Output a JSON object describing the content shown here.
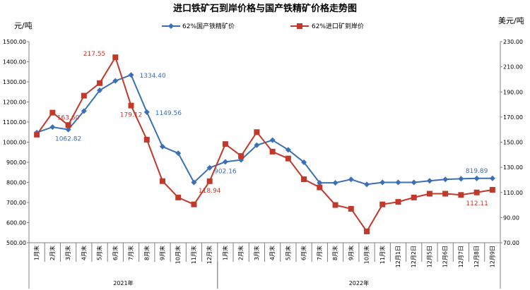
{
  "chart_data": {
    "type": "line",
    "title": "进口铁矿石到岸价格与国产铁精矿价格走势图",
    "left_unit": "元/吨",
    "right_unit": "美元/吨",
    "ylim_left": [
      500,
      1500
    ],
    "ylim_right": [
      70,
      230
    ],
    "yticks_left": [
      "500.00",
      "600.00",
      "700.00",
      "800.00",
      "900.00",
      "1000.00",
      "1100.00",
      "1200.00",
      "1300.00",
      "1400.00",
      "1500.00"
    ],
    "yticks_right": [
      "70.00",
      "90.00",
      "110.00",
      "130.00",
      "150.00",
      "170.00",
      "190.00",
      "210.00",
      "230.00"
    ],
    "categories": [
      "1月末",
      "2月末",
      "3月末",
      "4月末",
      "5月末",
      "6月末",
      "7月末",
      "8月末",
      "9月末",
      "10月末",
      "11月末",
      "12月末",
      "1月末",
      "2月末",
      "3月末",
      "4月末",
      "5月末",
      "6月末",
      "7月末",
      "8月末",
      "9月末",
      "10月末",
      "11月末",
      "12月1日",
      "12月2日",
      "12月5日",
      "12月6日",
      "12月7日",
      "12月8日",
      "12月9日"
    ],
    "year_groups": [
      {
        "label": "2021年",
        "start": 0,
        "end": 11
      },
      {
        "label": "2022年",
        "start": 12,
        "end": 29
      }
    ],
    "series": [
      {
        "name": "62%国产铁精矿价",
        "axis": "left",
        "color": "#3b6fb6",
        "marker": "diamond",
        "values": [
          1048,
          1075,
          1062.82,
          1155,
          1258,
          1305,
          1334.4,
          1149.56,
          978,
          945,
          800,
          873,
          902.16,
          912,
          985,
          1010,
          962,
          900,
          798,
          798,
          815,
          790,
          800,
          800,
          800,
          808,
          815,
          818,
          819.89,
          820
        ]
      },
      {
        "name": "62%进口矿到岸价",
        "axis": "right",
        "color": "#c0392b",
        "marker": "square",
        "values": [
          156,
          173.5,
          163.6,
          187,
          197,
          217.55,
          179.12,
          152,
          119,
          106,
          100.5,
          118.94,
          148.5,
          139,
          158,
          142.5,
          137,
          120.5,
          114,
          100,
          97,
          79,
          100.5,
          102.5,
          106,
          109,
          109,
          108,
          110,
          112.11
        ]
      }
    ],
    "data_labels": [
      {
        "series": 1,
        "index": 5,
        "text": "217.55",
        "position": "above-left"
      },
      {
        "series": 0,
        "index": 6,
        "text": "1334.40",
        "position": "right"
      },
      {
        "series": 1,
        "index": 2,
        "text": "163.60",
        "position": "above"
      },
      {
        "series": 0,
        "index": 2,
        "text": "1062.82",
        "position": "below"
      },
      {
        "series": 0,
        "index": 7,
        "text": "1149.56",
        "position": "right"
      },
      {
        "series": 1,
        "index": 6,
        "text": "179.12",
        "position": "below"
      },
      {
        "series": 1,
        "index": 11,
        "text": "118.94",
        "position": "below"
      },
      {
        "series": 0,
        "index": 12,
        "text": "902.16",
        "position": "below"
      },
      {
        "series": 0,
        "index": 28,
        "text": "819.89",
        "position": "above"
      },
      {
        "series": 1,
        "index": 29,
        "text": "112.11",
        "position": "below-left"
      }
    ],
    "legend": "top-center",
    "grid": false
  }
}
